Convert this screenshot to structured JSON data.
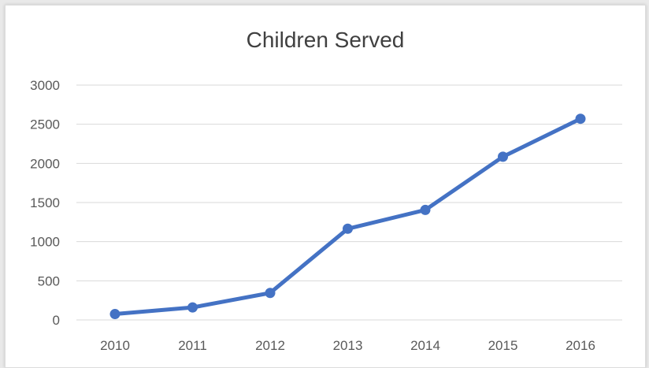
{
  "chart_data": {
    "type": "line",
    "title": "Children Served",
    "categories": [
      "2010",
      "2011",
      "2012",
      "2013",
      "2014",
      "2015",
      "2016"
    ],
    "series": [
      {
        "values": [
          75,
          160,
          345,
          1165,
          1405,
          2085,
          2570
        ]
      }
    ],
    "yticks": [
      "0",
      "500",
      "1000",
      "1500",
      "2000",
      "2500",
      "3000"
    ],
    "ylim": [
      0,
      3000
    ],
    "grid": true,
    "colors": {
      "line": "#4472C4",
      "grid": "#d9d9d9"
    }
  }
}
